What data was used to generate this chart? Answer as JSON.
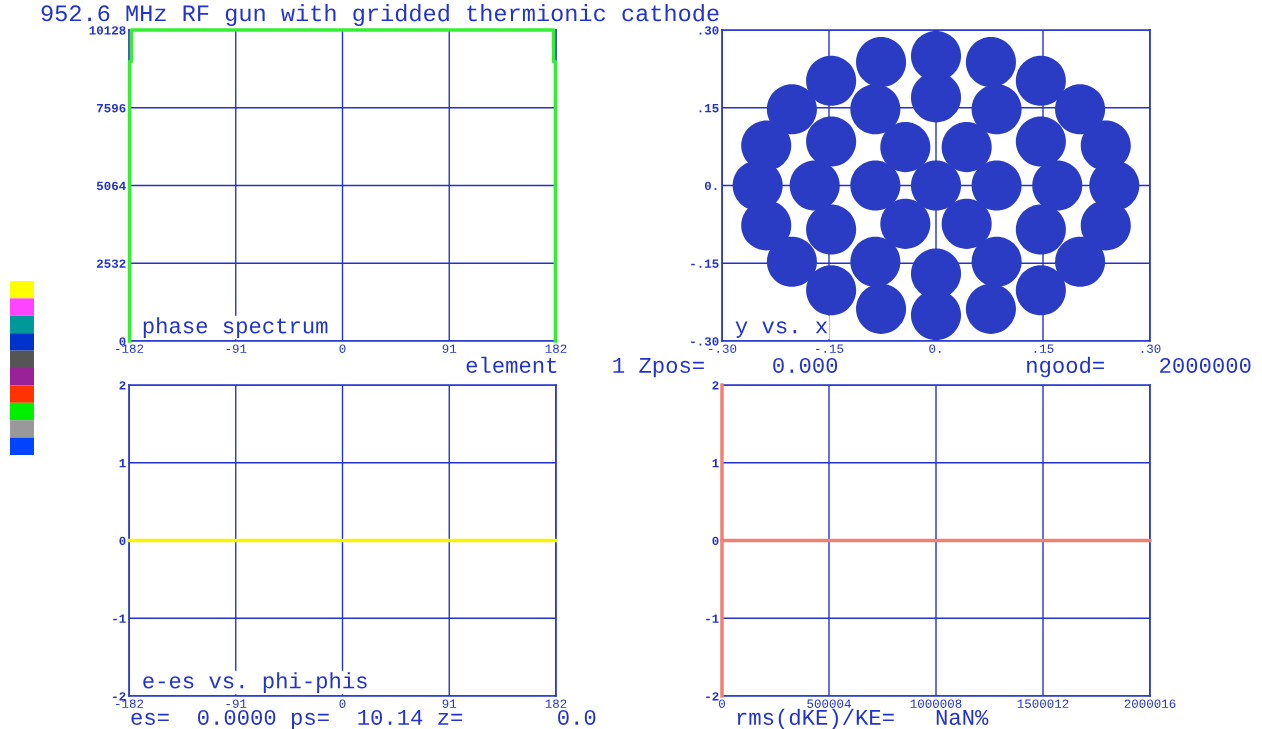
{
  "chart_data": [
    {
      "type": "line",
      "title": "952.6 MHz RF gun with gridded thermionic cathode",
      "annotations": [
        "phase spectrum"
      ],
      "grid": true,
      "xlim": [
        -182,
        182
      ],
      "xticks": [
        -182,
        -91,
        0,
        91,
        182
      ],
      "ylim": [
        0,
        10128
      ],
      "yticks": [
        0,
        2532,
        5064,
        7596,
        10128
      ],
      "series": [
        {
          "color": "#33ee33",
          "x": [
            -181.5,
            -181.5,
            -180,
            -180,
            180,
            180,
            181.5,
            181.5
          ],
          "values": [
            0,
            9100,
            9100,
            10128,
            10128,
            9100,
            9100,
            0
          ]
        }
      ]
    },
    {
      "type": "scatter",
      "annotations": [
        "y vs. x",
        "element    1 Zpos=     0.000              ngood=    2000000"
      ],
      "grid": true,
      "marker": "circle",
      "xlim": [
        -0.3,
        0.3
      ],
      "xticks": [
        {
          "value": -0.3,
          "label": "-.30"
        },
        {
          "value": -0.15,
          "label": "-.15"
        },
        {
          "value": 0,
          "label": "0."
        },
        {
          "value": 0.15,
          "label": ".15"
        },
        {
          "value": 0.3,
          "label": ".30"
        }
      ],
      "ylim": [
        -0.3,
        0.3
      ],
      "yticks": [
        {
          "value": -0.3,
          "label": "-.30"
        },
        {
          "value": -0.15,
          "label": "-.15"
        },
        {
          "value": 0,
          "label": "0."
        },
        {
          "value": 0.15,
          "label": ".15"
        },
        {
          "value": 0.3,
          "label": ".30"
        }
      ],
      "series": [
        {
          "color": "#2a3cc4",
          "x": [
            0.25,
            0.238,
            0.202,
            0.147,
            0.077,
            0,
            -0.077,
            -0.147,
            -0.202,
            -0.238,
            -0.25,
            -0.238,
            -0.202,
            -0.147,
            -0.077,
            0,
            0.077,
            0.147,
            0.202,
            0.238,
            0.17,
            0.147,
            0.085,
            0,
            -0.085,
            -0.147,
            -0.17,
            -0.147,
            -0.085,
            0,
            0.085,
            0.147,
            0.085,
            0.043,
            -0.043,
            -0.085,
            -0.043,
            0.043,
            0
          ],
          "values": [
            0,
            0.077,
            0.147,
            0.202,
            0.238,
            0.25,
            0.238,
            0.202,
            0.147,
            0.077,
            0,
            -0.077,
            -0.147,
            -0.202,
            -0.238,
            -0.25,
            -0.238,
            -0.202,
            -0.147,
            -0.077,
            0,
            0.085,
            0.147,
            0.17,
            0.147,
            0.085,
            0,
            -0.085,
            -0.147,
            -0.17,
            -0.147,
            -0.085,
            0,
            0.074,
            0.074,
            0,
            -0.074,
            -0.074,
            0
          ]
        }
      ]
    },
    {
      "type": "line",
      "annotations": [
        "e-es vs. phi-phis",
        "es=  0.0000 ps=  10.14 z=       0.0"
      ],
      "grid": true,
      "xlim": [
        -182,
        182
      ],
      "xticks": [
        -182,
        -91,
        0,
        91,
        182
      ],
      "ylim": [
        -2,
        2
      ],
      "yticks": [
        -2,
        -1,
        0,
        1,
        2
      ],
      "series": [
        {
          "color": "#f5f500",
          "x": [
            -182,
            182
          ],
          "values": [
            0,
            0
          ]
        }
      ]
    },
    {
      "type": "line",
      "annotations": [
        "rms(dKE)/KE=   NaN%"
      ],
      "grid": true,
      "xlim": [
        0,
        2000016
      ],
      "xticks": [
        0,
        500004,
        1000008,
        1500012,
        2000016
      ],
      "ylim": [
        -2,
        2
      ],
      "yticks": [
        -2,
        -1,
        0,
        1,
        2
      ],
      "series": [
        {
          "color": "#f08070",
          "x": [
            0,
            2000016
          ],
          "values": [
            0,
            0
          ]
        },
        {
          "color": "#f08070",
          "x": [
            0,
            0
          ],
          "values": [
            -2,
            2
          ]
        }
      ]
    }
  ]
}
